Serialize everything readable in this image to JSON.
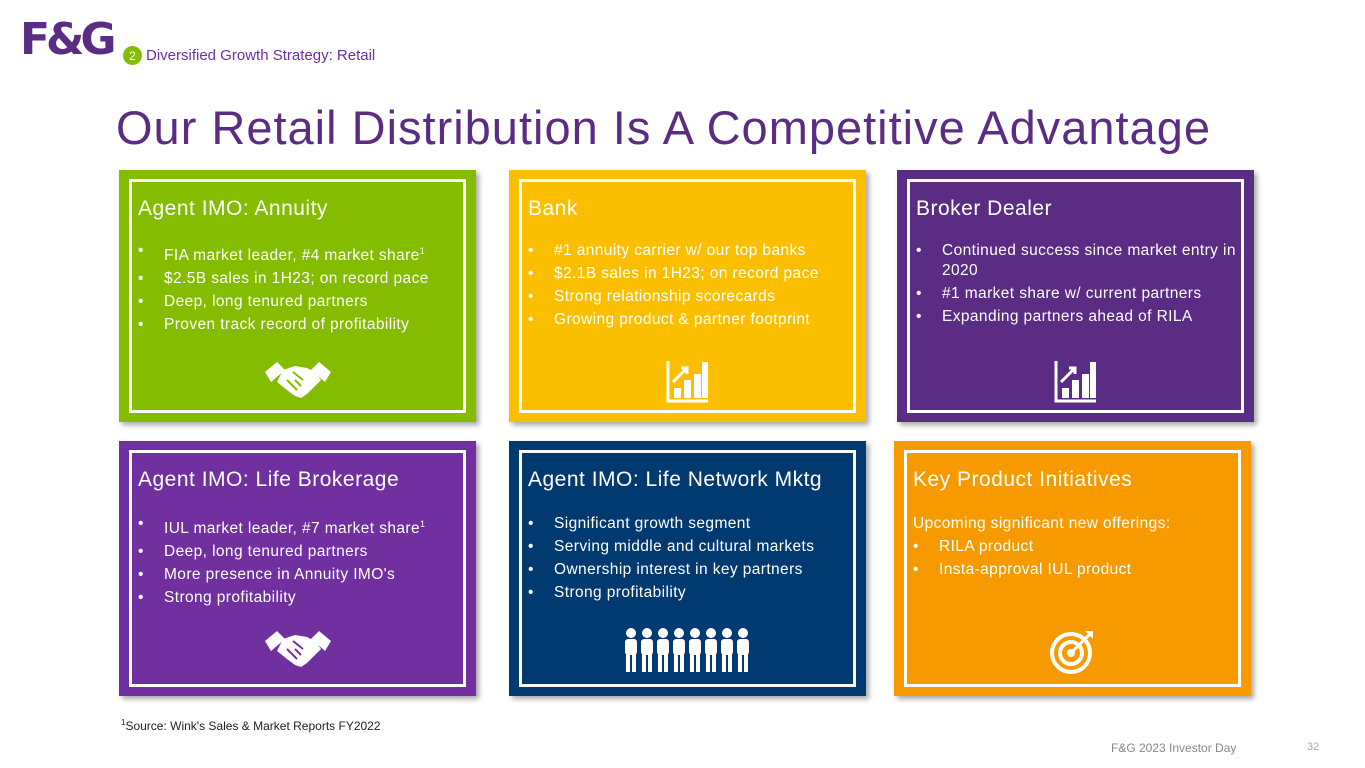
{
  "header": {
    "logo": "F&G",
    "section_number": "2",
    "section": "Diversified Growth Strategy:  Retail"
  },
  "title": "Our Retail Distribution Is A Competitive Advantage",
  "cards": [
    {
      "title": "Agent IMO: Annuity",
      "bullets": [
        {
          "text": "FIA market leader, #4 market share",
          "sup": "1"
        },
        {
          "text": "$2.5B sales in 1H23; on record pace"
        },
        {
          "text": "Deep, long tenured partners"
        },
        {
          "text": "Proven track record of profitability"
        }
      ]
    },
    {
      "title": "Bank",
      "bullets": [
        {
          "text": "#1 annuity carrier w/ our top banks"
        },
        {
          "text": "$2.1B sales in 1H23; on record pace"
        },
        {
          "text": "Strong relationship scorecards"
        },
        {
          "text": "Growing product & partner footprint"
        }
      ]
    },
    {
      "title": "Broker Dealer",
      "bullets": [
        {
          "text": "Continued success since market entry in 2020"
        },
        {
          "text": "#1 market share w/ current partners"
        },
        {
          "text": "Expanding partners ahead of RILA"
        }
      ]
    },
    {
      "title": "Agent IMO: Life Brokerage",
      "bullets": [
        {
          "text": "IUL market leader, #7 market share",
          "sup": "1"
        },
        {
          "text": "Deep, long tenured partners"
        },
        {
          "text": "More presence in Annuity IMO's"
        },
        {
          "text": "Strong profitability"
        }
      ]
    },
    {
      "title": "Agent IMO: Life Network Mktg",
      "bullets": [
        {
          "text": "Significant growth segment"
        },
        {
          "text": "Serving middle and cultural markets"
        },
        {
          "text": "Ownership interest in key partners"
        },
        {
          "text": "Strong profitability"
        }
      ]
    },
    {
      "title": "Key Product Initiatives",
      "intro": "Upcoming significant new offerings:",
      "bullets": [
        {
          "text": "RILA product"
        },
        {
          "text": "Insta-approval IUL product"
        }
      ]
    }
  ],
  "footnote": {
    "marker": "1",
    "text": "Source: Wink's Sales & Market Reports FY2022"
  },
  "footer": {
    "event": "F&G 2023 Investor Day",
    "page": "32"
  }
}
